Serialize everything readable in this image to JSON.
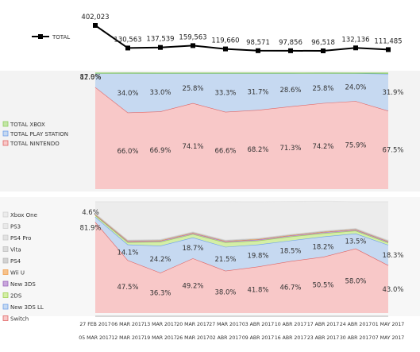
{
  "chart_data": [
    {
      "type": "line",
      "legend": [
        "TOTAL"
      ],
      "series": [
        {
          "name": "TOTAL",
          "values": [
            402023,
            130563,
            137539,
            159563,
            119660,
            98571,
            97856,
            96518,
            132136,
            111485
          ]
        }
      ],
      "labels": [
        "402,023",
        "130,563",
        "137,539",
        "159,563",
        "119,660",
        "98,571",
        "97,856",
        "96,518",
        "132,136",
        "111,485"
      ]
    },
    {
      "type": "area",
      "stacked": true,
      "percent": true,
      "legend": [
        "TOTAL XBOX",
        "TOTAL PLAY STATION",
        "TOTAL NINTENDO"
      ],
      "series": [
        {
          "name": "TOTAL NINTENDO",
          "values": [
            87.9,
            66.0,
            66.9,
            74.1,
            66.6,
            68.2,
            71.3,
            74.2,
            75.9,
            67.5
          ]
        },
        {
          "name": "TOTAL PLAY STATION",
          "values": [
            12.0,
            34.0,
            33.0,
            25.8,
            33.3,
            31.7,
            28.6,
            25.8,
            24.0,
            31.9
          ]
        },
        {
          "name": "TOTAL XBOX",
          "values": [
            0.1,
            0.0,
            0.1,
            0.1,
            0.1,
            0.1,
            0.1,
            0.0,
            0.1,
            0.6
          ]
        }
      ],
      "labels": {
        "nintendo": [
          "87.9%",
          "66.0%",
          "66.9%",
          "74.1%",
          "66.6%",
          "68.2%",
          "71.3%",
          "74.2%",
          "75.9%",
          "67.5%"
        ],
        "playstation": [
          "12.0%",
          "34.0%",
          "33.0%",
          "25.8%",
          "33.3%",
          "31.7%",
          "28.6%",
          "25.8%",
          "24.0%",
          "31.9%"
        ]
      }
    },
    {
      "type": "area",
      "stacked": true,
      "percent": true,
      "legend": [
        "Xbox One",
        "PS3",
        "PS4 Pro",
        "Vita",
        "PS4",
        "Wii U",
        "New 3DS",
        "2DS",
        "New 3DS LL",
        "Switch"
      ],
      "series": [
        {
          "name": "Switch",
          "values": [
            81.9,
            47.5,
            36.3,
            49.2,
            38.0,
            41.8,
            46.7,
            50.5,
            58.0,
            43.0
          ]
        },
        {
          "name": "New 3DS LL",
          "values": [
            4.6,
            14.1,
            24.2,
            18.7,
            21.5,
            19.8,
            18.5,
            18.2,
            13.5,
            18.3
          ]
        },
        {
          "name": "2DS",
          "values": [
            1.5,
            2.0,
            3.5,
            3.0,
            4.0,
            3.5,
            3.5,
            3.0,
            2.5,
            2.0
          ]
        },
        {
          "name": "New 3DS",
          "values": [
            0.5,
            1.0,
            1.0,
            1.0,
            1.0,
            1.0,
            1.0,
            1.0,
            1.0,
            1.0
          ]
        },
        {
          "name": "Wii U",
          "values": [
            0.3,
            0.3,
            0.3,
            0.3,
            0.3,
            0.3,
            0.3,
            0.3,
            0.3,
            0.3
          ]
        },
        {
          "name": "PS4",
          "values": [
            0.5,
            0.5,
            0.5,
            0.5,
            0.5,
            0.5,
            0.5,
            0.5,
            0.5,
            0.5
          ]
        },
        {
          "name": "Vita",
          "values": [
            0.3,
            0.3,
            0.3,
            0.3,
            0.3,
            0.3,
            0.3,
            0.3,
            0.3,
            0.3
          ]
        },
        {
          "name": "PS4 Pro",
          "values": [
            0.2,
            0.2,
            0.2,
            0.2,
            0.2,
            0.2,
            0.2,
            0.2,
            0.2,
            0.2
          ]
        },
        {
          "name": "PS3",
          "values": [
            0.1,
            0.1,
            0.1,
            0.1,
            0.1,
            0.1,
            0.1,
            0.1,
            0.1,
            0.1
          ]
        },
        {
          "name": "Xbox One",
          "values": [
            10.1,
            34.0,
            33.6,
            26.7,
            34.2,
            32.5,
            29.1,
            26.4,
            23.6,
            34.3
          ]
        }
      ],
      "labels": {
        "switch": [
          "81.9%",
          "47.5%",
          "36.3%",
          "49.2%",
          "38.0%",
          "41.8%",
          "46.7%",
          "50.5%",
          "58.0%",
          "43.0%"
        ],
        "new3dsll": [
          "4.6%",
          "14.1%",
          "24.2%",
          "18.7%",
          "21.5%",
          "19.8%",
          "18.5%",
          "18.2%",
          "13.5%",
          "18.3%"
        ]
      }
    }
  ],
  "x_labels": {
    "start": [
      "27 FEB 2017",
      "06 MAR 2017",
      "13 MAR 2017",
      "20 MAR 2017",
      "27 MAR 2017",
      "03 ABR 2017",
      "10 ABR 2017",
      "17 ABR 2017",
      "24 ABR 2017",
      "01 MAY 2017"
    ],
    "end": [
      "05 MAR 2017",
      "12 MAR 2017",
      "19 MAR 2017",
      "26 MAR 2017",
      "02 ABR 2017",
      "09 ABR 2017",
      "16 ABR 2017",
      "23 ABR 2017",
      "30 ABR 2017",
      "07 MAY 2017"
    ]
  },
  "colors": {
    "line": "#000000",
    "nintendo": "#f8c8c8",
    "nintendo_stroke": "#e06666",
    "playstation": "#c6d9f1",
    "playstation_stroke": "#6d9eeb",
    "xbox": "#c3e6a6",
    "xbox_stroke": "#8fce62",
    "xboxone": "#ececec",
    "ps3": "#e9e9e9",
    "ps4pro": "#e2e2e2",
    "vita": "#dcdcdc",
    "ps4": "#d2d2d2",
    "wiiu": "#f6c28b",
    "wiiu_stroke": "#f0a050",
    "new3ds": "#c9a6dc",
    "new3ds_stroke": "#9966bb",
    "ds2": "#d4eea6",
    "ds2_stroke": "#9ed050",
    "new3dsll": "#c6d9f1",
    "new3dsll_stroke": "#6d9eeb",
    "switch": "#f8c8c8",
    "switch_stroke": "#e06666",
    "axis": "#999999"
  }
}
